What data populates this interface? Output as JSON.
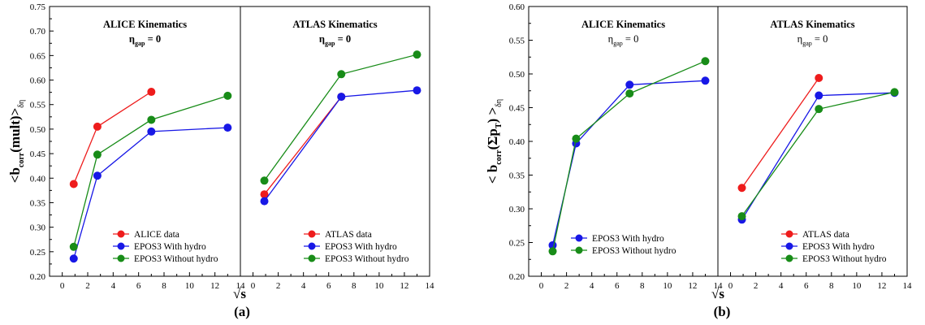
{
  "colors": {
    "red": "#ee1c1c",
    "blue": "#1818e6",
    "green": "#188c18"
  },
  "chart_data": [
    {
      "type": "line",
      "panel_label": "(a)",
      "ylabel": "<b",
      "ylabel_sub": "corr",
      "ylabel_mid": "(mult)>",
      "ylabel_sub2": "δη",
      "xlabel": "√s",
      "ylim": [
        0.2,
        0.75
      ],
      "yticks": [
        "0.20",
        "0.25",
        "0.30",
        "0.35",
        "0.40",
        "0.45",
        "0.50",
        "0.55",
        "0.60",
        "0.65",
        "0.70",
        "0.75"
      ],
      "subpanels": [
        {
          "title": "ALICE Kinematics",
          "subtitle_main": "η",
          "subtitle_sub": "gap",
          "subtitle_rest": " = 0",
          "xlim": [
            -1,
            14
          ],
          "xticks": [
            "0",
            "2",
            "4",
            "6",
            "8",
            "10",
            "12",
            "14"
          ],
          "legend_position": "bottom-right",
          "series": [
            {
              "name": "ALICE data",
              "color": "red",
              "x": [
                0.9,
                2.76,
                7
              ],
              "y": [
                0.388,
                0.505,
                0.576
              ]
            },
            {
              "name": "EPOS3 With hydro",
              "color": "blue",
              "x": [
                0.9,
                2.76,
                7,
                13
              ],
              "y": [
                0.236,
                0.405,
                0.495,
                0.503
              ]
            },
            {
              "name": "EPOS3 Without hydro",
              "color": "green",
              "x": [
                0.9,
                2.76,
                7,
                13
              ],
              "y": [
                0.26,
                0.448,
                0.519,
                0.568
              ]
            }
          ]
        },
        {
          "title": "ATLAS Kinematics",
          "subtitle_main": "η",
          "subtitle_sub": "gap",
          "subtitle_rest": " = 0",
          "xlim": [
            -1,
            14
          ],
          "xticks": [
            "0",
            "2",
            "4",
            "6",
            "8",
            "10",
            "12",
            "14"
          ],
          "legend_position": "bottom-right",
          "series": [
            {
              "name": "ATLAS data",
              "color": "red",
              "x": [
                0.9,
                7
              ],
              "y": [
                0.367,
                0.566
              ]
            },
            {
              "name": "EPOS3 With hydro",
              "color": "blue",
              "x": [
                0.9,
                7,
                13
              ],
              "y": [
                0.353,
                0.566,
                0.579
              ]
            },
            {
              "name": "EPOS3 Without hydro",
              "color": "green",
              "x": [
                0.9,
                7,
                13
              ],
              "y": [
                0.395,
                0.612,
                0.652
              ]
            }
          ]
        }
      ]
    },
    {
      "type": "line",
      "panel_label": "(b)",
      "ylabel": "< b",
      "ylabel_sub": "corr",
      "ylabel_mid": "(Σp",
      "ylabel_sub_t": "T",
      "ylabel_end": ") >",
      "ylabel_sub2": "δη",
      "xlabel": "√s",
      "ylim": [
        0.2,
        0.6
      ],
      "yticks": [
        "0.20",
        "0.25",
        "0.30",
        "0.35",
        "0.40",
        "0.45",
        "0.50",
        "0.55",
        "0.60"
      ],
      "subpanels": [
        {
          "title": "ALICE Kinematics",
          "subtitle_main": "η",
          "subtitle_sub": "gap",
          "subtitle_rest": " = 0",
          "xlim": [
            -1,
            14
          ],
          "xticks": [
            "0",
            "2",
            "4",
            "6",
            "8",
            "10",
            "12",
            "14"
          ],
          "legend_position": "bottom-right",
          "series": [
            {
              "name": "EPOS3 With hydro",
              "color": "blue",
              "x": [
                0.9,
                2.76,
                7,
                13
              ],
              "y": [
                0.246,
                0.397,
                0.484,
                0.49
              ]
            },
            {
              "name": "EPOS3 Without hydro",
              "color": "green",
              "x": [
                0.9,
                2.76,
                7,
                13
              ],
              "y": [
                0.237,
                0.404,
                0.471,
                0.519
              ]
            }
          ]
        },
        {
          "title": "ATLAS Kinematics",
          "subtitle_main": "η",
          "subtitle_sub": "gap",
          "subtitle_rest": " = 0",
          "xlim": [
            -1,
            14
          ],
          "xticks": [
            "0",
            "2",
            "4",
            "6",
            "8",
            "10",
            "12",
            "14"
          ],
          "legend_position": "bottom-right",
          "series": [
            {
              "name": "ATLAS data",
              "color": "red",
              "x": [
                0.9,
                7
              ],
              "y": [
                0.331,
                0.494
              ]
            },
            {
              "name": "EPOS3 With hydro",
              "color": "blue",
              "x": [
                0.9,
                7,
                13
              ],
              "y": [
                0.284,
                0.468,
                0.472
              ]
            },
            {
              "name": "EPOS3 Without hydro",
              "color": "green",
              "x": [
                0.9,
                7,
                13
              ],
              "y": [
                0.289,
                0.448,
                0.473
              ]
            }
          ]
        }
      ]
    }
  ]
}
